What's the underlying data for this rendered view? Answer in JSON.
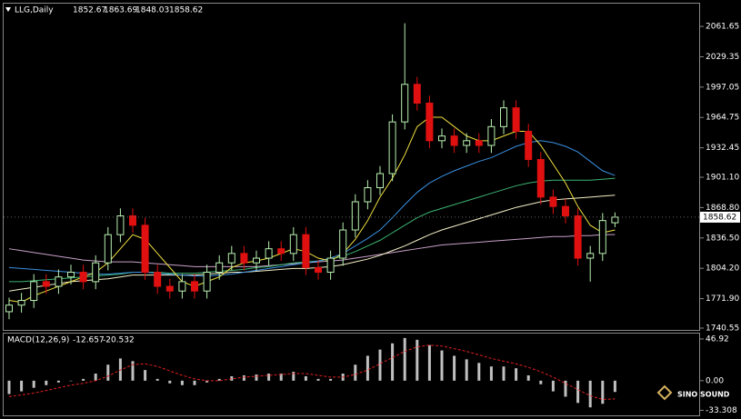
{
  "chart_data": [
    {
      "type": "candlestick",
      "title": "LLG,Daily",
      "up_color": "#b8f0b0",
      "down_color": "#e01010",
      "ylim": [
        1738.6,
        2085.9
      ],
      "yticks": [
        1740.55,
        {
          "value": 1771.9,
          "label": "1771.90"
        },
        {
          "value": 1804.2,
          "label": "1804.20"
        },
        {
          "value": 1836.5,
          "label": "1836.50"
        },
        {
          "value": 1868.8,
          "label": "1868.80"
        },
        {
          "value": 1901.1,
          "label": "1901.10"
        },
        1932.45,
        1964.75,
        1997.05,
        2029.35,
        2061.65
      ],
      "open": [
        1758,
        1765,
        1770,
        1790,
        1785,
        1795,
        1800,
        1790,
        1810,
        1840,
        1860,
        1850,
        1800,
        1785,
        1780,
        1790,
        1780,
        1800,
        1810,
        1820,
        1810,
        1815,
        1825,
        1820,
        1840,
        1805,
        1800,
        1815,
        1845,
        1875,
        1890,
        1905,
        1960,
        2000,
        1980,
        1940,
        1945,
        1935,
        1940,
        1935,
        1955,
        1975,
        1950,
        1920,
        1880,
        1870,
        1860,
        1815,
        1820,
        1852.67
      ],
      "high": [
        1773,
        1778,
        1798,
        1798,
        1803,
        1808,
        1808,
        1818,
        1848,
        1868,
        1868,
        1858,
        1808,
        1793,
        1798,
        1798,
        1808,
        1818,
        1828,
        1828,
        1823,
        1833,
        1833,
        1848,
        1848,
        1813,
        1823,
        1853,
        1883,
        1898,
        1913,
        1968,
        2065,
        2008,
        1988,
        1953,
        1953,
        1948,
        1948,
        1963,
        1983,
        1983,
        1958,
        1928,
        1888,
        1878,
        1868,
        1828,
        1863,
        1863.69
      ],
      "low": [
        1750,
        1757,
        1762,
        1777,
        1777,
        1787,
        1782,
        1782,
        1802,
        1832,
        1842,
        1792,
        1777,
        1772,
        1772,
        1772,
        1772,
        1792,
        1802,
        1802,
        1802,
        1807,
        1812,
        1812,
        1797,
        1792,
        1792,
        1807,
        1837,
        1867,
        1882,
        1897,
        1952,
        1972,
        1932,
        1932,
        1927,
        1927,
        1927,
        1927,
        1947,
        1942,
        1912,
        1872,
        1862,
        1852,
        1807,
        1790,
        1812,
        1848.03
      ],
      "close": [
        1765,
        1770,
        1790,
        1785,
        1795,
        1800,
        1790,
        1810,
        1840,
        1860,
        1850,
        1800,
        1785,
        1780,
        1790,
        1780,
        1800,
        1810,
        1820,
        1810,
        1815,
        1825,
        1820,
        1840,
        1805,
        1800,
        1815,
        1845,
        1875,
        1890,
        1905,
        1960,
        2000,
        1980,
        1940,
        1945,
        1935,
        1940,
        1935,
        1955,
        1975,
        1950,
        1920,
        1880,
        1870,
        1860,
        1815,
        1820,
        1855,
        1858.62
      ],
      "series": [
        {
          "color": "#c8a0c8",
          "values": [
            1825,
            1823,
            1821,
            1819,
            1817,
            1815,
            1813,
            1812,
            1811,
            1811,
            1811,
            1810,
            1809,
            1808,
            1807,
            1806,
            1806,
            1806,
            1806,
            1806,
            1806,
            1807,
            1808,
            1809,
            1810,
            1811,
            1812,
            1813,
            1815,
            1817,
            1819,
            1821,
            1823,
            1825,
            1827,
            1829,
            1830,
            1831,
            1832,
            1833,
            1834,
            1835,
            1836,
            1837,
            1838,
            1838,
            1839,
            1839,
            1840,
            1840
          ]
        },
        {
          "color": "#f5f0c8",
          "values": [
            1780,
            1782,
            1784,
            1786,
            1788,
            1790,
            1791,
            1792,
            1793,
            1795,
            1797,
            1797,
            1797,
            1797,
            1797,
            1797,
            1798,
            1799,
            1800,
            1800,
            1801,
            1802,
            1803,
            1804,
            1804,
            1805,
            1806,
            1808,
            1811,
            1814,
            1818,
            1823,
            1828,
            1834,
            1840,
            1845,
            1849,
            1853,
            1857,
            1861,
            1865,
            1869,
            1872,
            1875,
            1877,
            1878,
            1879,
            1880,
            1881,
            1882
          ]
        },
        {
          "color": "#3cb371",
          "values": [
            1790,
            1790,
            1791,
            1792,
            1793,
            1794,
            1795,
            1796,
            1797,
            1798,
            1800,
            1800,
            1800,
            1799,
            1799,
            1799,
            1800,
            1801,
            1802,
            1803,
            1805,
            1806,
            1808,
            1810,
            1811,
            1812,
            1814,
            1817,
            1822,
            1828,
            1834,
            1842,
            1850,
            1858,
            1864,
            1868,
            1872,
            1876,
            1880,
            1884,
            1888,
            1892,
            1895,
            1897,
            1898,
            1898,
            1898,
            1898,
            1899,
            1900
          ]
        },
        {
          "color": "#3a8fe0",
          "values": [
            1805,
            1804,
            1803,
            1802,
            1801,
            1800,
            1799,
            1798,
            1798,
            1799,
            1800,
            1800,
            1799,
            1798,
            1797,
            1796,
            1796,
            1797,
            1798,
            1800,
            1802,
            1804,
            1806,
            1808,
            1810,
            1812,
            1815,
            1820,
            1828,
            1836,
            1845,
            1858,
            1872,
            1885,
            1895,
            1902,
            1908,
            1913,
            1918,
            1922,
            1928,
            1934,
            1938,
            1940,
            1938,
            1934,
            1928,
            1918,
            1908,
            1903
          ]
        },
        {
          "color": "#f0e040",
          "values": [
            1770,
            1768,
            1775,
            1780,
            1785,
            1790,
            1795,
            1800,
            1810,
            1825,
            1840,
            1835,
            1820,
            1805,
            1790,
            1785,
            1790,
            1795,
            1805,
            1810,
            1812,
            1815,
            1820,
            1825,
            1822,
            1815,
            1812,
            1820,
            1835,
            1855,
            1880,
            1900,
            1925,
            1955,
            1965,
            1965,
            1955,
            1945,
            1940,
            1940,
            1945,
            1950,
            1950,
            1935,
            1915,
            1895,
            1870,
            1850,
            1842,
            1845
          ]
        }
      ]
    },
    {
      "type": "macd",
      "title": "MACD(12,26,9)",
      "hist_color": "#c0c0c0",
      "signal_color": "#e02020",
      "ylim": [
        -39,
        53
      ],
      "yticks": [
        46.92,
        {
          "value": 0,
          "label": "0.00"
        },
        -33.308
      ],
      "histogram": [
        -15,
        -12,
        -8,
        -5,
        -2,
        0,
        2,
        8,
        18,
        25,
        22,
        12,
        2,
        -3,
        -5,
        -5,
        -2,
        2,
        5,
        6,
        7,
        8,
        8,
        10,
        5,
        2,
        2,
        8,
        18,
        28,
        35,
        42,
        48,
        46,
        40,
        34,
        28,
        24,
        20,
        16,
        16,
        14,
        6,
        -4,
        -12,
        -18,
        -25,
        -30,
        -26,
        -12.657
      ],
      "signal": [
        -18,
        -16,
        -14,
        -11,
        -8,
        -5,
        -3,
        0,
        5,
        12,
        18,
        19,
        16,
        11,
        6,
        2,
        0,
        0,
        2,
        4,
        5,
        6,
        7,
        8,
        8,
        6,
        4,
        4,
        7,
        12,
        19,
        26,
        33,
        38,
        40,
        39,
        36,
        33,
        29,
        25,
        22,
        19,
        15,
        10,
        4,
        -3,
        -10,
        -17,
        -21,
        -20.532
      ]
    }
  ],
  "logo": "SINO SOUND"
}
